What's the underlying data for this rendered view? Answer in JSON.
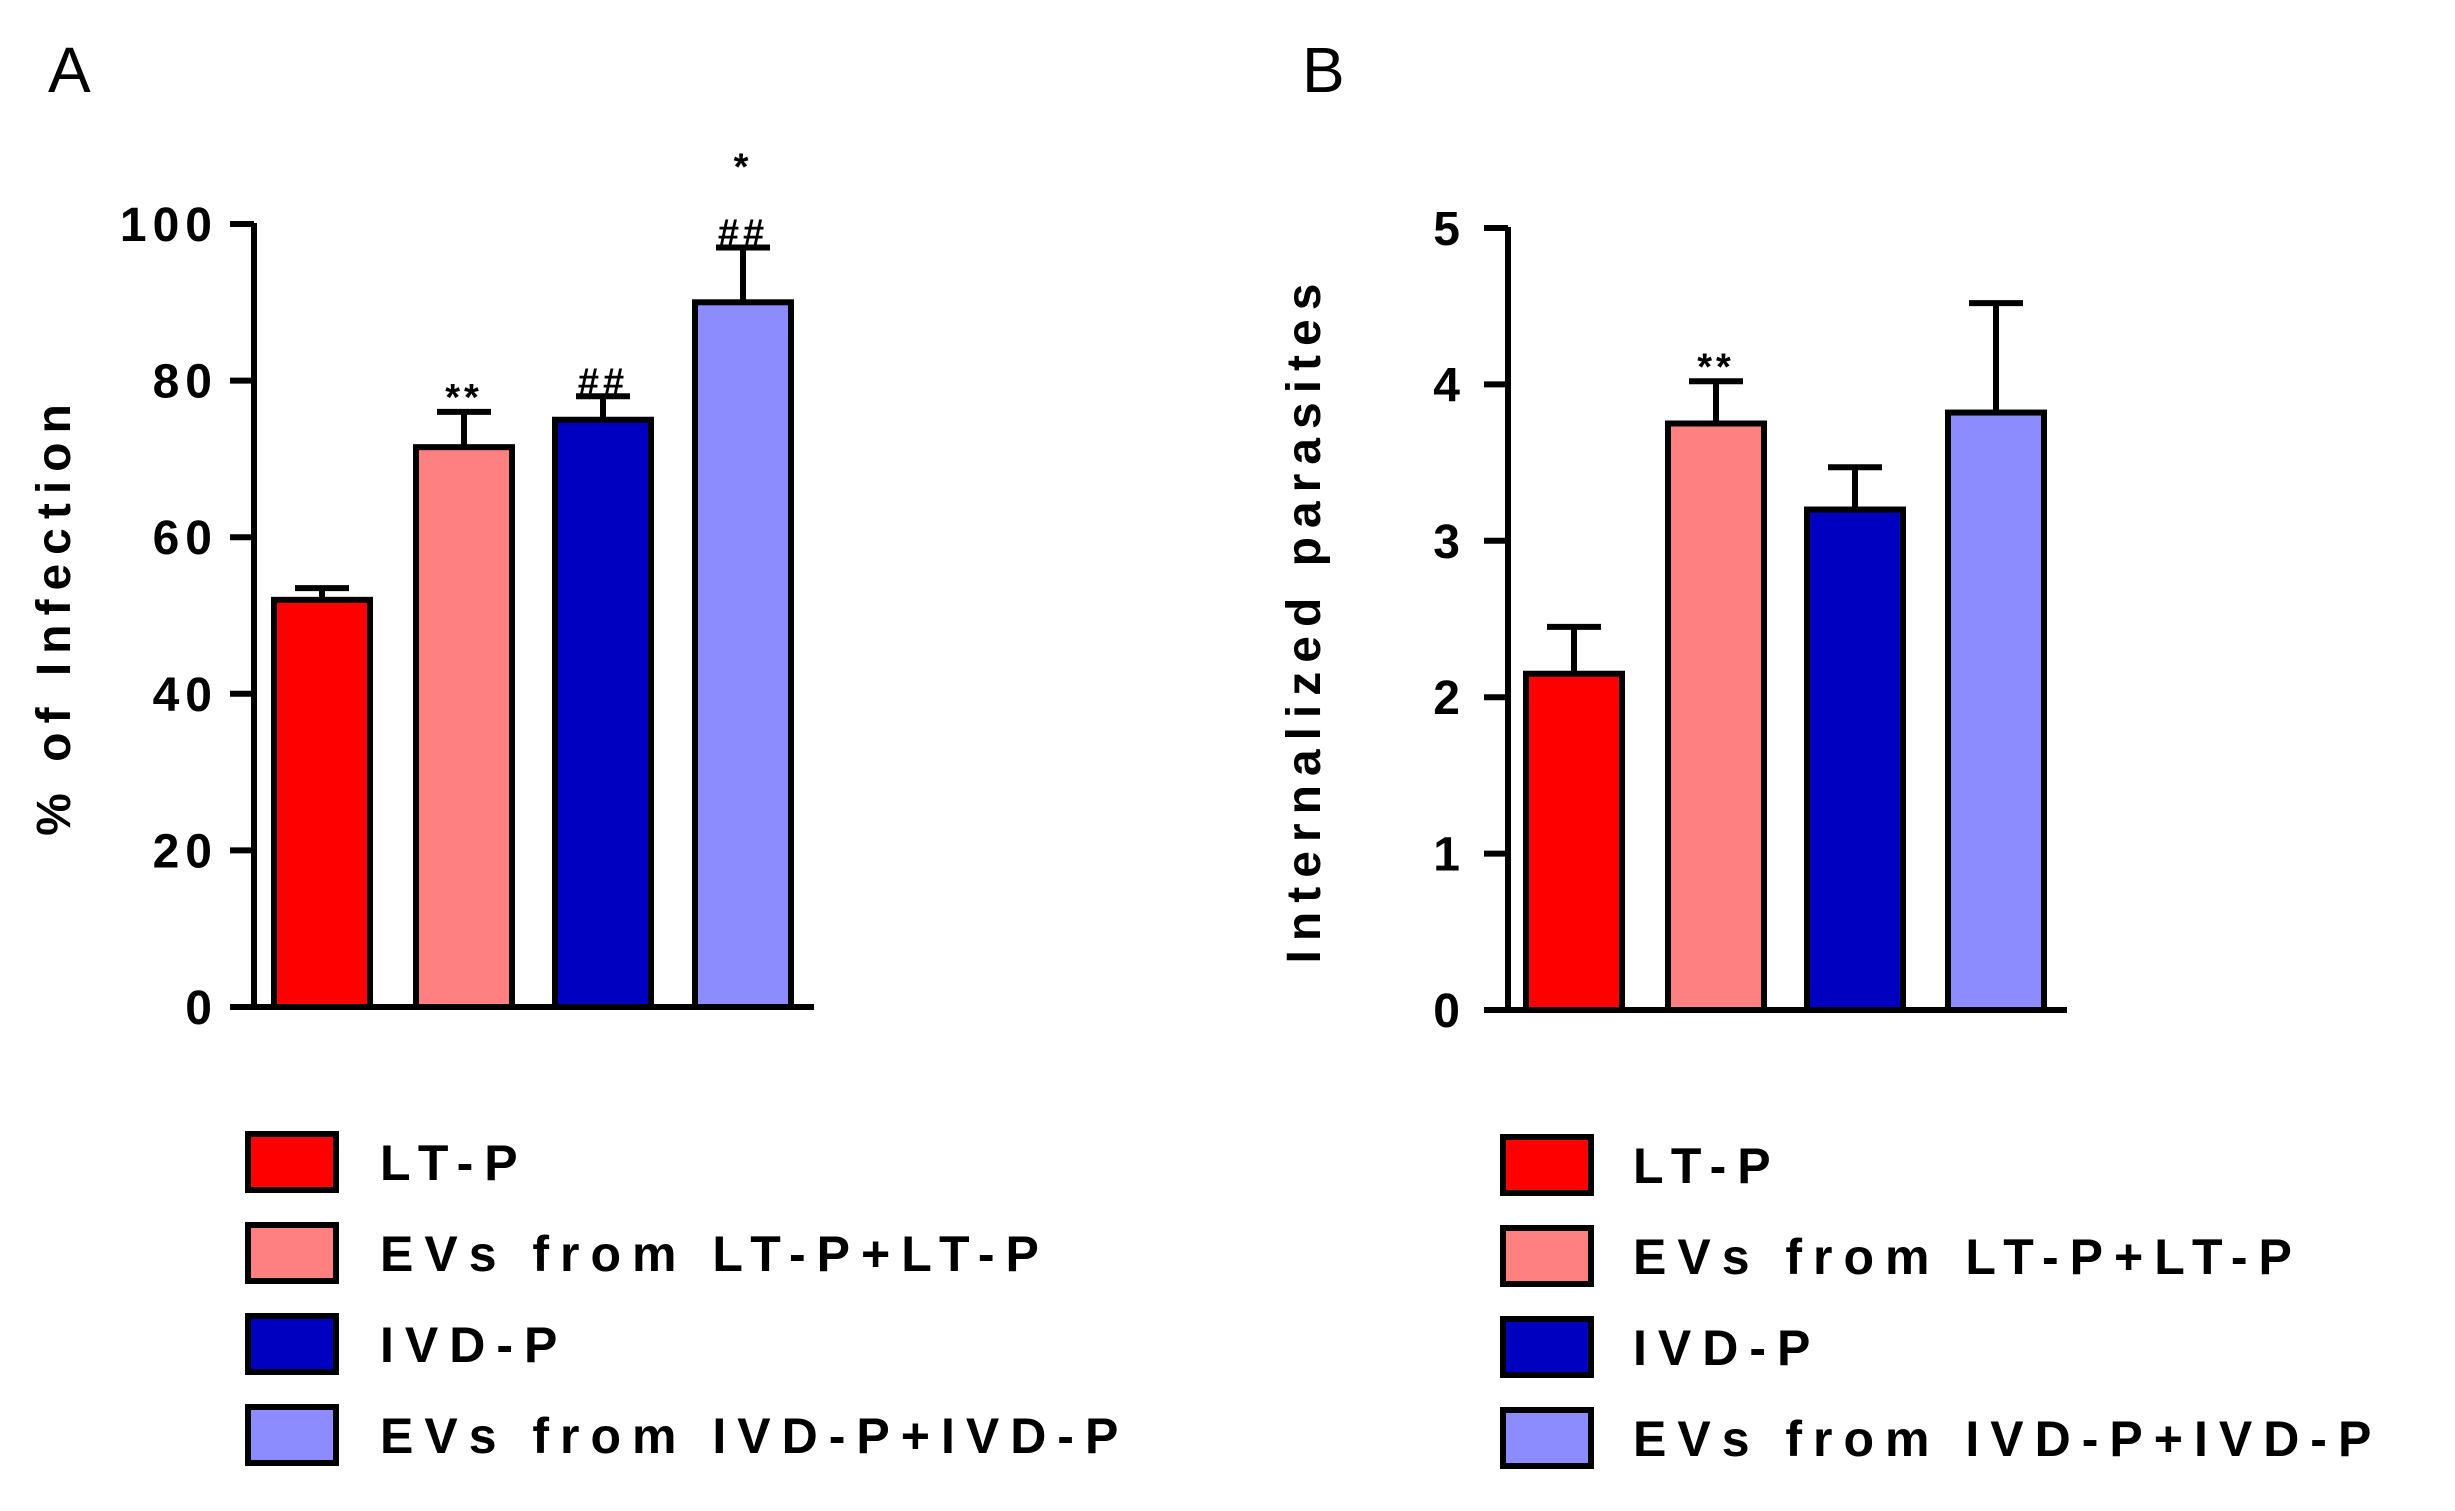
{
  "colors": {
    "LT-P": "#ff0000",
    "EVs from LT-P+LT-P": "#ff8080",
    "IVD-P": "#0000c0",
    "EVs from IVD-P+IVD-P": "#8c8cff",
    "axis": "#000000"
  },
  "chart_data": [
    {
      "panel": "A",
      "type": "bar",
      "ylabel": "% of Infection",
      "ylim": [
        0,
        100
      ],
      "yticks": [
        "0",
        "20",
        "40",
        "60",
        "80",
        "100"
      ],
      "categories": [
        "LT-P",
        "EVs from LT-P+LT-P",
        "IVD-P",
        "EVs from IVD-P+IVD-P"
      ],
      "values": [
        52,
        71.5,
        75,
        90
      ],
      "errors": [
        1.5,
        4.5,
        3,
        7
      ],
      "annotations": [
        "",
        "**",
        "##",
        "*\n##"
      ],
      "legend": [
        "LT-P",
        "EVs from LT-P+LT-P",
        "IVD-P",
        "EVs from IVD-P+IVD-P"
      ],
      "legend_position": "bottom",
      "grid": false
    },
    {
      "panel": "B",
      "type": "bar",
      "ylabel": "Internalized parasites",
      "ylim": [
        0,
        5
      ],
      "yticks": [
        "0",
        "1",
        "2",
        "3",
        "4",
        "5"
      ],
      "categories": [
        "LT-P",
        "EVs from LT-P+LT-P",
        "IVD-P",
        "EVs from IVD-P+IVD-P"
      ],
      "values": [
        2.15,
        3.75,
        3.2,
        3.82
      ],
      "errors": [
        0.3,
        0.27,
        0.27,
        0.7
      ],
      "annotations": [
        "",
        "**",
        "",
        ""
      ],
      "legend": [
        "LT-P",
        "EVs from LT-P+LT-P",
        "IVD-P",
        "EVs from IVD-P+IVD-P"
      ],
      "legend_position": "bottom",
      "grid": false
    }
  ]
}
